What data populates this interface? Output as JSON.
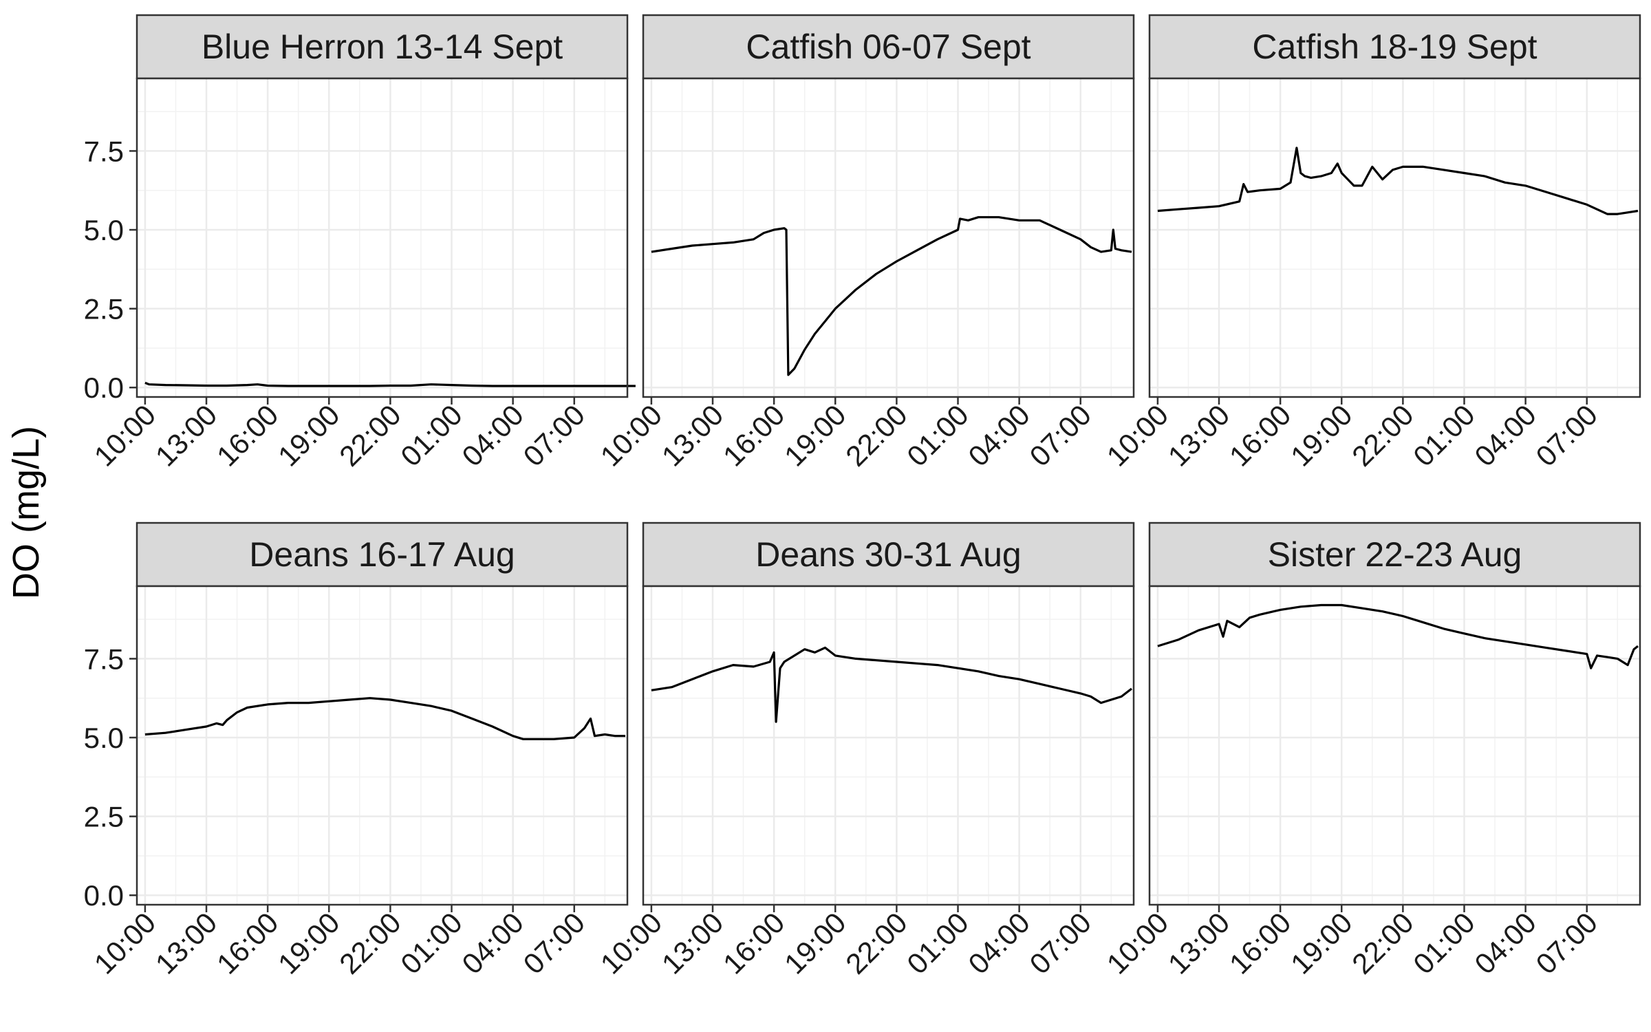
{
  "chart_data": {
    "type": "line",
    "ylabel": "DO (mg/L)",
    "xlabel": "",
    "ylim": [
      -0.3,
      9.8
    ],
    "y_ticks": [
      0.0,
      2.5,
      5.0,
      7.5
    ],
    "y_tick_labels": [
      "0.0",
      "2.5",
      "5.0",
      "7.5"
    ],
    "x_range_hours": [
      9.6,
      33.6
    ],
    "x_ticks": [
      10,
      13,
      16,
      19,
      22,
      25,
      28,
      31
    ],
    "x_tick_labels": [
      "10:00",
      "13:00",
      "16:00",
      "19:00",
      "22:00",
      "01:00",
      "04:00",
      "07:00"
    ],
    "grid": true,
    "panels": [
      {
        "title": "Blue Herron 13-14 Sept",
        "x": [
          10.0,
          10.2,
          11.0,
          12.0,
          13.0,
          14.0,
          15.0,
          15.5,
          16.0,
          17.0,
          18.0,
          19.0,
          20.0,
          21.0,
          22.0,
          23.0,
          24.0,
          25.0,
          26.0,
          27.0,
          28.0,
          29.0,
          30.0,
          31.0,
          32.0,
          33.0,
          34.0
        ],
        "y": [
          0.15,
          0.1,
          0.08,
          0.07,
          0.06,
          0.06,
          0.08,
          0.1,
          0.06,
          0.05,
          0.05,
          0.05,
          0.05,
          0.05,
          0.06,
          0.06,
          0.1,
          0.08,
          0.06,
          0.05,
          0.05,
          0.05,
          0.05,
          0.05,
          0.05,
          0.05,
          0.05
        ]
      },
      {
        "title": "Catfish 06-07 Sept",
        "x": [
          10.0,
          11.0,
          12.0,
          13.0,
          14.0,
          15.0,
          15.5,
          16.0,
          16.5,
          16.6,
          16.7,
          17.0,
          17.5,
          18.0,
          18.5,
          19.0,
          19.5,
          20.0,
          20.5,
          21.0,
          22.0,
          23.0,
          24.0,
          25.0,
          25.1,
          25.5,
          26.0,
          27.0,
          28.0,
          29.0,
          30.0,
          31.0,
          31.5,
          32.0,
          32.5,
          32.6,
          32.7,
          33.0,
          33.5
        ],
        "y": [
          4.3,
          4.4,
          4.5,
          4.55,
          4.6,
          4.7,
          4.9,
          5.0,
          5.05,
          5.0,
          0.4,
          0.6,
          1.2,
          1.7,
          2.1,
          2.5,
          2.8,
          3.1,
          3.35,
          3.6,
          4.0,
          4.35,
          4.7,
          5.0,
          5.35,
          5.3,
          5.4,
          5.4,
          5.3,
          5.3,
          5.0,
          4.7,
          4.45,
          4.3,
          4.35,
          5.0,
          4.4,
          4.35,
          4.3
        ]
      },
      {
        "title": "Catfish 18-19 Sept",
        "x": [
          10.0,
          11.0,
          12.0,
          13.0,
          14.0,
          14.2,
          14.4,
          15.0,
          16.0,
          16.5,
          16.8,
          17.0,
          17.2,
          17.5,
          18.0,
          18.5,
          18.8,
          19.0,
          19.3,
          19.6,
          20.0,
          20.5,
          21.0,
          21.5,
          22.0,
          23.0,
          24.0,
          25.0,
          26.0,
          27.0,
          28.0,
          29.0,
          30.0,
          31.0,
          32.0,
          32.5,
          33.0,
          33.5
        ],
        "y": [
          5.6,
          5.65,
          5.7,
          5.75,
          5.9,
          6.45,
          6.2,
          6.25,
          6.3,
          6.5,
          7.6,
          6.8,
          6.7,
          6.65,
          6.7,
          6.8,
          7.1,
          6.8,
          6.6,
          6.4,
          6.4,
          7.0,
          6.6,
          6.9,
          7.0,
          7.0,
          6.9,
          6.8,
          6.7,
          6.5,
          6.4,
          6.2,
          6.0,
          5.8,
          5.5,
          5.5,
          5.55,
          5.6
        ]
      },
      {
        "title": "Deans 16-17 Aug",
        "x": [
          10.0,
          11.0,
          12.0,
          13.0,
          13.5,
          13.8,
          14.0,
          14.5,
          15.0,
          16.0,
          17.0,
          18.0,
          19.0,
          20.0,
          21.0,
          22.0,
          23.0,
          24.0,
          25.0,
          26.0,
          27.0,
          28.0,
          28.5,
          29.0,
          30.0,
          31.0,
          31.5,
          31.8,
          32.0,
          32.5,
          33.0,
          33.5
        ],
        "y": [
          5.1,
          5.15,
          5.25,
          5.35,
          5.45,
          5.4,
          5.55,
          5.8,
          5.95,
          6.05,
          6.1,
          6.1,
          6.15,
          6.2,
          6.25,
          6.2,
          6.1,
          6.0,
          5.85,
          5.6,
          5.35,
          5.05,
          4.95,
          4.95,
          4.95,
          5.0,
          5.3,
          5.6,
          5.05,
          5.1,
          5.05,
          5.05
        ]
      },
      {
        "title": "Deans 30-31 Aug",
        "x": [
          10.0,
          11.0,
          12.0,
          13.0,
          14.0,
          15.0,
          15.8,
          16.0,
          16.1,
          16.3,
          16.5,
          17.0,
          17.5,
          18.0,
          18.5,
          19.0,
          20.0,
          21.0,
          22.0,
          23.0,
          24.0,
          25.0,
          26.0,
          27.0,
          28.0,
          29.0,
          30.0,
          31.0,
          31.5,
          32.0,
          33.0,
          33.5
        ],
        "y": [
          6.5,
          6.6,
          6.85,
          7.1,
          7.3,
          7.25,
          7.4,
          7.7,
          5.5,
          7.2,
          7.4,
          7.6,
          7.8,
          7.7,
          7.85,
          7.6,
          7.5,
          7.45,
          7.4,
          7.35,
          7.3,
          7.2,
          7.1,
          6.95,
          6.85,
          6.7,
          6.55,
          6.4,
          6.3,
          6.1,
          6.3,
          6.55
        ]
      },
      {
        "title": "Sister 22-23 Aug",
        "x": [
          10.0,
          11.0,
          12.0,
          13.0,
          13.2,
          13.4,
          14.0,
          14.5,
          15.0,
          16.0,
          17.0,
          18.0,
          19.0,
          20.0,
          21.0,
          22.0,
          23.0,
          24.0,
          25.0,
          26.0,
          27.0,
          28.0,
          29.0,
          30.0,
          31.0,
          31.2,
          31.5,
          32.0,
          32.5,
          33.0,
          33.3,
          33.5
        ],
        "y": [
          7.9,
          8.1,
          8.4,
          8.6,
          8.2,
          8.7,
          8.5,
          8.8,
          8.9,
          9.05,
          9.15,
          9.2,
          9.2,
          9.1,
          9.0,
          8.85,
          8.65,
          8.45,
          8.3,
          8.15,
          8.05,
          7.95,
          7.85,
          7.75,
          7.65,
          7.2,
          7.6,
          7.55,
          7.5,
          7.3,
          7.8,
          7.9
        ]
      }
    ]
  }
}
